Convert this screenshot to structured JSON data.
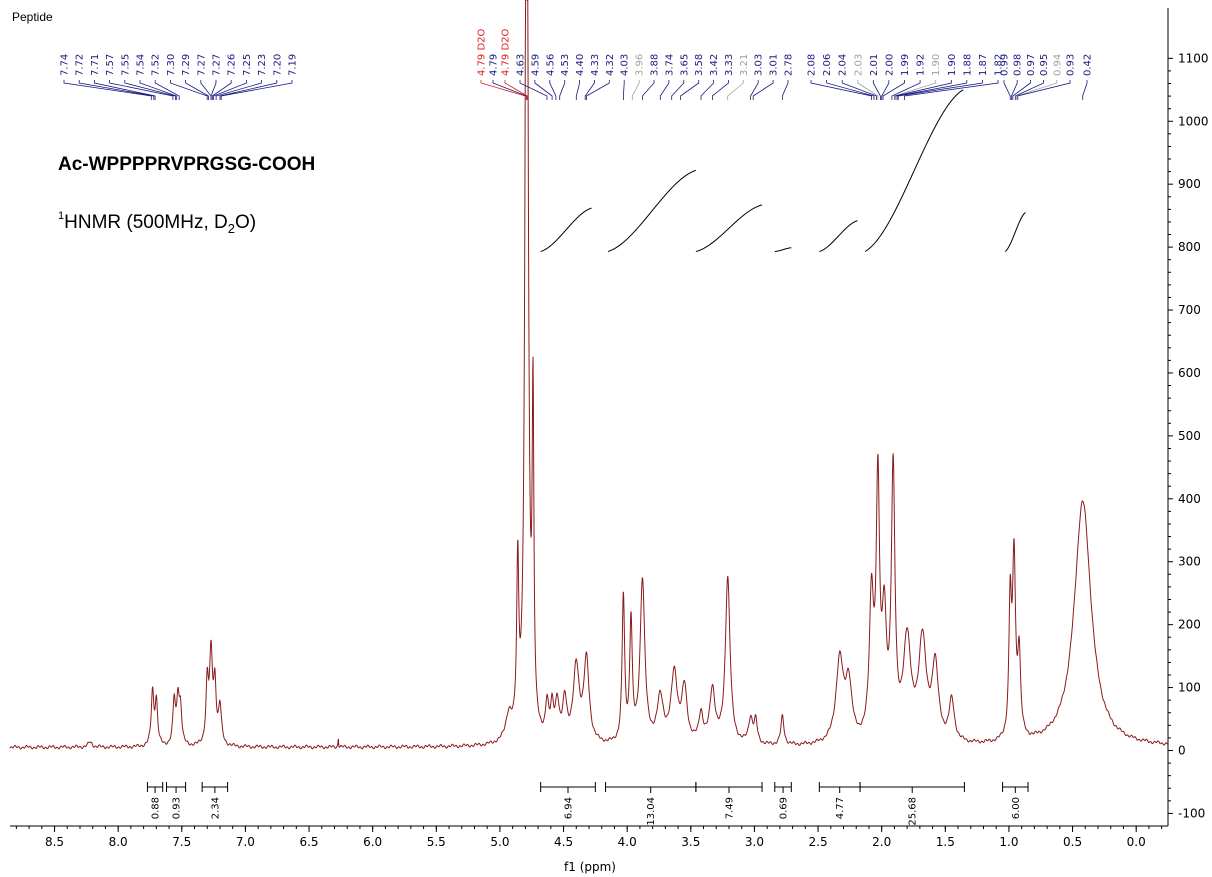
{
  "window_title": "Peptide",
  "colors": {
    "spectrum": "#8b1a1a",
    "peak_label": "#1a1a80",
    "peak_label_faint": "#a0a0a0",
    "solvent_label": "#e02020",
    "axis": "#000000",
    "integral_curve": "#000000"
  },
  "compound": {
    "name": "Ac-WPPPPRVPRGSG-COOH",
    "nmr_sup": "1",
    "nmr_prefix": "HNMR (500MHz, D",
    "nmr_sub": "2",
    "nmr_suffix": "O)"
  },
  "chart_data": {
    "type": "line",
    "xlabel": "f1 (ppm)",
    "x_reversed": true,
    "xlim": [
      8.85,
      -0.25
    ],
    "ylim": [
      -120,
      1180
    ],
    "x_ticks": [
      "8.5",
      "8.0",
      "7.5",
      "7.0",
      "6.5",
      "6.0",
      "5.5",
      "5.0",
      "4.5",
      "4.0",
      "3.5",
      "3.0",
      "2.5",
      "2.0",
      "1.5",
      "1.0",
      "0.5",
      "0.0"
    ],
    "y_ticks": [
      "1100",
      "1000",
      "900",
      "800",
      "700",
      "600",
      "500",
      "400",
      "300",
      "200",
      "100",
      "0",
      "-100"
    ],
    "baseline": 5,
    "peaks": [
      {
        "ppm": 8.22,
        "h": 8,
        "w": 0.02
      },
      {
        "ppm": 7.73,
        "h": 85,
        "w": 0.012
      },
      {
        "ppm": 7.7,
        "h": 70,
        "w": 0.012
      },
      {
        "ppm": 7.56,
        "h": 70,
        "w": 0.012
      },
      {
        "ppm": 7.53,
        "h": 72,
        "w": 0.012
      },
      {
        "ppm": 7.51,
        "h": 55,
        "w": 0.012
      },
      {
        "ppm": 7.3,
        "h": 95,
        "w": 0.012
      },
      {
        "ppm": 7.27,
        "h": 140,
        "w": 0.014
      },
      {
        "ppm": 7.24,
        "h": 90,
        "w": 0.012
      },
      {
        "ppm": 7.2,
        "h": 60,
        "w": 0.014
      },
      {
        "ppm": 6.27,
        "h": 15,
        "w": 0.003
      },
      {
        "ppm": 4.93,
        "h": 40,
        "w": 0.03
      },
      {
        "ppm": 4.86,
        "h": 260,
        "w": 0.01
      },
      {
        "ppm": 4.79,
        "h": 1800,
        "w": 0.013
      },
      {
        "ppm": 4.74,
        "h": 500,
        "w": 0.008
      },
      {
        "ppm": 4.63,
        "h": 55,
        "w": 0.015
      },
      {
        "ppm": 4.59,
        "h": 50,
        "w": 0.015
      },
      {
        "ppm": 4.55,
        "h": 60,
        "w": 0.018
      },
      {
        "ppm": 4.49,
        "h": 65,
        "w": 0.02
      },
      {
        "ppm": 4.4,
        "h": 120,
        "w": 0.028
      },
      {
        "ppm": 4.32,
        "h": 130,
        "w": 0.025
      },
      {
        "ppm": 4.03,
        "h": 230,
        "w": 0.012
      },
      {
        "ppm": 3.97,
        "h": 190,
        "w": 0.012
      },
      {
        "ppm": 3.88,
        "h": 260,
        "w": 0.022
      },
      {
        "ppm": 3.74,
        "h": 70,
        "w": 0.03
      },
      {
        "ppm": 3.63,
        "h": 110,
        "w": 0.03
      },
      {
        "ppm": 3.55,
        "h": 85,
        "w": 0.025
      },
      {
        "ppm": 3.42,
        "h": 45,
        "w": 0.02
      },
      {
        "ppm": 3.33,
        "h": 85,
        "w": 0.025
      },
      {
        "ppm": 3.21,
        "h": 265,
        "w": 0.022
      },
      {
        "ppm": 3.03,
        "h": 40,
        "w": 0.02
      },
      {
        "ppm": 2.99,
        "h": 35,
        "w": 0.015
      },
      {
        "ppm": 2.78,
        "h": 45,
        "w": 0.015
      },
      {
        "ppm": 2.33,
        "h": 130,
        "w": 0.035
      },
      {
        "ppm": 2.26,
        "h": 90,
        "w": 0.03
      },
      {
        "ppm": 2.08,
        "h": 220,
        "w": 0.02
      },
      {
        "ppm": 2.03,
        "h": 390,
        "w": 0.016
      },
      {
        "ppm": 1.98,
        "h": 180,
        "w": 0.02
      },
      {
        "ppm": 1.91,
        "h": 420,
        "w": 0.017
      },
      {
        "ppm": 1.8,
        "h": 160,
        "w": 0.035
      },
      {
        "ppm": 1.68,
        "h": 160,
        "w": 0.035
      },
      {
        "ppm": 1.58,
        "h": 120,
        "w": 0.03
      },
      {
        "ppm": 1.45,
        "h": 65,
        "w": 0.025
      },
      {
        "ppm": 0.99,
        "h": 210,
        "w": 0.012
      },
      {
        "ppm": 0.96,
        "h": 280,
        "w": 0.014
      },
      {
        "ppm": 0.92,
        "h": 130,
        "w": 0.014
      },
      {
        "ppm": 0.42,
        "h": 390,
        "w": 0.08
      }
    ],
    "peak_labels": [
      {
        "text": "7.74",
        "ppm": 7.74,
        "faint": false
      },
      {
        "text": "7.72",
        "ppm": 7.72,
        "faint": false
      },
      {
        "text": "7.71",
        "ppm": 7.71,
        "faint": false
      },
      {
        "text": "7.57",
        "ppm": 7.57,
        "faint": false
      },
      {
        "text": "7.55",
        "ppm": 7.55,
        "faint": false
      },
      {
        "text": "7.54",
        "ppm": 7.54,
        "faint": false
      },
      {
        "text": "7.52",
        "ppm": 7.52,
        "faint": false
      },
      {
        "text": "7.30",
        "ppm": 7.3,
        "faint": false
      },
      {
        "text": "7.29",
        "ppm": 7.29,
        "faint": false
      },
      {
        "text": "7.27",
        "ppm": 7.27,
        "faint": false
      },
      {
        "text": "7.27",
        "ppm": 7.27,
        "faint": false
      },
      {
        "text": "7.26",
        "ppm": 7.26,
        "faint": false
      },
      {
        "text": "7.25",
        "ppm": 7.25,
        "faint": false
      },
      {
        "text": "7.23",
        "ppm": 7.23,
        "faint": false
      },
      {
        "text": "7.20",
        "ppm": 7.2,
        "faint": false
      },
      {
        "text": "7.19",
        "ppm": 7.19,
        "faint": false
      },
      {
        "text": "4.79 D2O",
        "ppm": 4.8,
        "solvent": true
      },
      {
        "text": "4.79",
        "ppm": 4.79,
        "faint": false
      },
      {
        "text": "4.79 D2O",
        "ppm": 4.785,
        "solvent": true
      },
      {
        "text": "4.63",
        "ppm": 4.63,
        "faint": false
      },
      {
        "text": "4.59",
        "ppm": 4.59,
        "faint": false
      },
      {
        "text": "4.56",
        "ppm": 4.56,
        "faint": false
      },
      {
        "text": "4.53",
        "ppm": 4.53,
        "faint": false
      },
      {
        "text": "4.40",
        "ppm": 4.4,
        "faint": false
      },
      {
        "text": "4.33",
        "ppm": 4.33,
        "faint": false
      },
      {
        "text": "4.32",
        "ppm": 4.32,
        "faint": false
      },
      {
        "text": "4.03",
        "ppm": 4.03,
        "faint": false
      },
      {
        "text": "3.96",
        "ppm": 3.96,
        "faint": true
      },
      {
        "text": "3.88",
        "ppm": 3.88,
        "faint": false
      },
      {
        "text": "3.74",
        "ppm": 3.74,
        "faint": false
      },
      {
        "text": "3.65",
        "ppm": 3.65,
        "faint": false
      },
      {
        "text": "3.58",
        "ppm": 3.58,
        "faint": false
      },
      {
        "text": "3.42",
        "ppm": 3.42,
        "faint": false
      },
      {
        "text": "3.33",
        "ppm": 3.33,
        "faint": false
      },
      {
        "text": "3.21",
        "ppm": 3.21,
        "faint": true
      },
      {
        "text": "3.03",
        "ppm": 3.03,
        "faint": false
      },
      {
        "text": "3.01",
        "ppm": 3.01,
        "faint": false
      },
      {
        "text": "2.78",
        "ppm": 2.78,
        "faint": false
      },
      {
        "text": "2.08",
        "ppm": 2.08,
        "faint": false
      },
      {
        "text": "2.06",
        "ppm": 2.06,
        "faint": false
      },
      {
        "text": "2.04",
        "ppm": 2.04,
        "faint": false
      },
      {
        "text": "2.03",
        "ppm": 2.03,
        "faint": true
      },
      {
        "text": "2.01",
        "ppm": 2.01,
        "faint": false
      },
      {
        "text": "2.00",
        "ppm": 2.0,
        "faint": false
      },
      {
        "text": "1.99",
        "ppm": 1.99,
        "faint": false
      },
      {
        "text": "1.92",
        "ppm": 1.92,
        "faint": false
      },
      {
        "text": "1.90",
        "ppm": 1.9,
        "faint": true
      },
      {
        "text": "1.90",
        "ppm": 1.895,
        "faint": false
      },
      {
        "text": "1.88",
        "ppm": 1.88,
        "faint": false
      },
      {
        "text": "1.87",
        "ppm": 1.87,
        "faint": false
      },
      {
        "text": "1.82",
        "ppm": 1.82,
        "faint": false
      },
      {
        "text": "0.99",
        "ppm": 0.99,
        "faint": false
      },
      {
        "text": "0.98",
        "ppm": 0.98,
        "faint": false
      },
      {
        "text": "0.97",
        "ppm": 0.97,
        "faint": false
      },
      {
        "text": "0.95",
        "ppm": 0.95,
        "faint": false
      },
      {
        "text": "0.94",
        "ppm": 0.94,
        "faint": true
      },
      {
        "text": "0.93",
        "ppm": 0.93,
        "faint": false
      },
      {
        "text": "0.42",
        "ppm": 0.42,
        "faint": false
      }
    ],
    "integrals": [
      {
        "label": "0.88",
        "from": 7.77,
        "to": 7.65
      },
      {
        "label": "0.93",
        "from": 7.62,
        "to": 7.47
      },
      {
        "label": "2.34",
        "from": 7.34,
        "to": 7.14
      },
      {
        "label": "6.94",
        "from": 4.68,
        "to": 4.25
      },
      {
        "label": "13.04",
        "from": 4.17,
        "to": 3.46
      },
      {
        "label": "7.49",
        "from": 3.46,
        "to": 2.94
      },
      {
        "label": "0.69",
        "from": 2.84,
        "to": 2.71
      },
      {
        "label": "4.77",
        "from": 2.49,
        "to": 2.17
      },
      {
        "label": "25.68",
        "from": 2.17,
        "to": 1.35
      },
      {
        "label": "6.00",
        "from": 1.05,
        "to": 0.85
      }
    ]
  }
}
